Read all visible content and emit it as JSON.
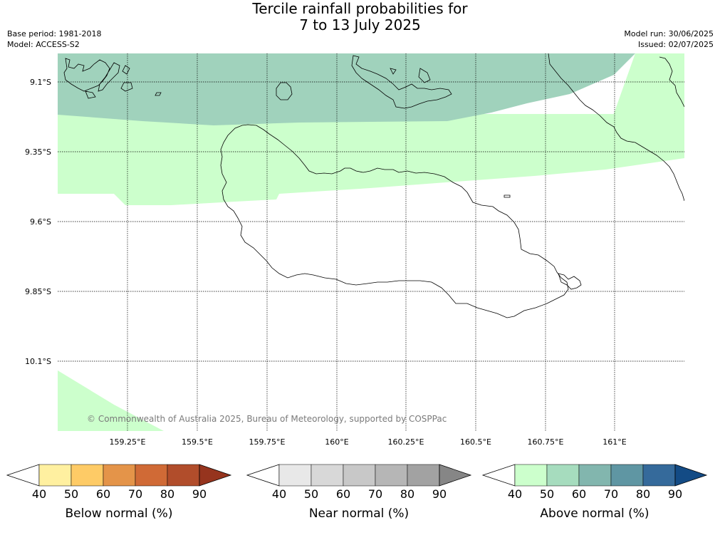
{
  "header": {
    "title_line1": "Tercile rainfall probabilities for",
    "title_line2": "7 to 13 July 2025",
    "base_period": "Base period: 1981-2018",
    "model": "Model: ACCESS-S2",
    "model_run": "Model run: 30/06/2025",
    "issued": "Issued: 02/07/2025"
  },
  "map": {
    "lat_labels": [
      "9.1°S",
      "9.35°S",
      "9.6°S",
      "9.85°S",
      "10.1°S"
    ],
    "lon_labels": [
      "159.25°E",
      "159.5°E",
      "159.75°E",
      "160°E",
      "160.25°E",
      "160.5°E",
      "160.75°E",
      "161°E"
    ],
    "copyright": "© Commonwealth of Australia 2025, Bureau of Meteorology, supported by COSPPac",
    "categories": [
      {
        "name": "above-normal-40-50",
        "color": "#ccffcc"
      },
      {
        "name": "above-normal-50-60",
        "color": "#a0d2bc"
      }
    ]
  },
  "colorbars": [
    {
      "label": "Below normal (%)",
      "ticks": [
        "40",
        "50",
        "60",
        "70",
        "80",
        "90"
      ],
      "colors": [
        "#fff0a0",
        "#fecb66",
        "#e49449",
        "#d06a36",
        "#b14d2b",
        "#96341e"
      ]
    },
    {
      "label": "Near normal (%)",
      "ticks": [
        "40",
        "50",
        "60",
        "70",
        "80",
        "90"
      ],
      "colors": [
        "#e8e8e8",
        "#d8d8d8",
        "#c8c8c8",
        "#b6b6b6",
        "#a2a2a2",
        "#868686"
      ]
    },
    {
      "label": "Above normal (%)",
      "ticks": [
        "40",
        "50",
        "60",
        "70",
        "80",
        "90"
      ],
      "colors": [
        "#ccffcc",
        "#a6dcbe",
        "#82b6ae",
        "#5f96a3",
        "#356a9b",
        "#134b85"
      ]
    }
  ]
}
